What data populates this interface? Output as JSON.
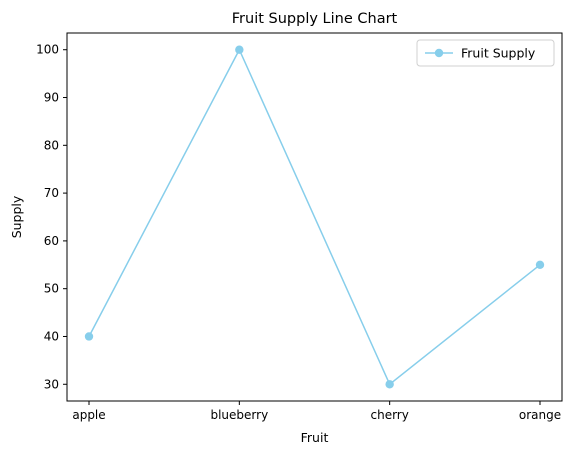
{
  "chart_data": {
    "type": "line",
    "title": "Fruit Supply Line Chart",
    "xlabel": "Fruit",
    "ylabel": "Supply",
    "categories": [
      "apple",
      "blueberry",
      "cherry",
      "orange"
    ],
    "series": [
      {
        "name": "Fruit Supply",
        "values": [
          40,
          100,
          30,
          55
        ],
        "color": "#87ceeb",
        "marker": "circle"
      }
    ],
    "ylim": [
      26.5,
      103.5
    ],
    "yticks": [
      30,
      40,
      50,
      60,
      70,
      80,
      90,
      100
    ],
    "grid": false,
    "legend_position": "top-right"
  }
}
